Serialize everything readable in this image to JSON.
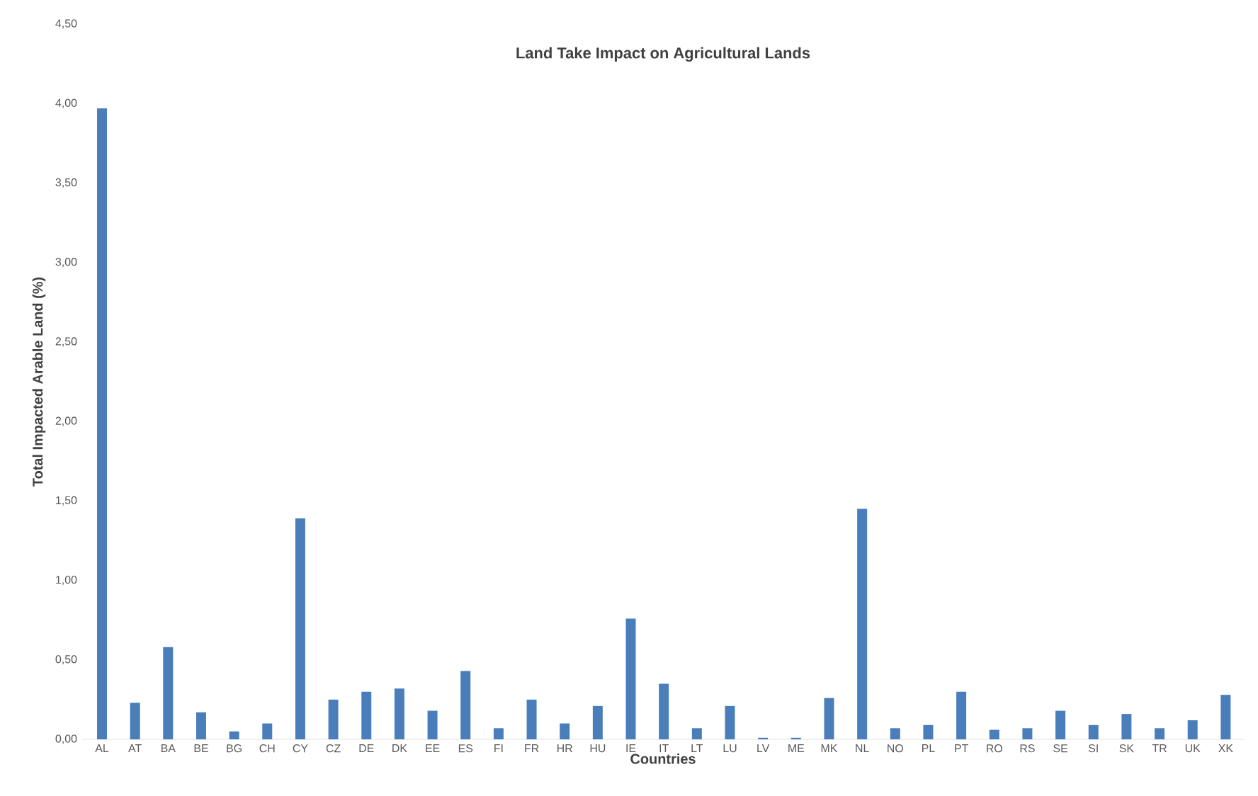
{
  "chart_data": {
    "type": "bar",
    "title": "Land Take Impact on Agricultural Lands",
    "xlabel": "Countries",
    "ylabel": "Total Impacted Arable Land (%)",
    "categories": [
      "AL",
      "AT",
      "BA",
      "BE",
      "BG",
      "CH",
      "CY",
      "CZ",
      "DE",
      "DK",
      "EE",
      "ES",
      "FI",
      "FR",
      "HR",
      "HU",
      "IE",
      "IT",
      "LT",
      "LU",
      "LV",
      "ME",
      "MK",
      "NL",
      "NO",
      "PL",
      "PT",
      "RO",
      "RS",
      "SE",
      "SI",
      "SK",
      "TR",
      "UK",
      "XK"
    ],
    "values": [
      3.97,
      0.23,
      0.58,
      0.17,
      0.05,
      0.1,
      1.39,
      0.25,
      0.3,
      0.32,
      0.18,
      0.43,
      0.07,
      0.25,
      0.1,
      0.21,
      0.76,
      0.35,
      0.07,
      0.21,
      0.01,
      0.01,
      0.26,
      1.45,
      0.07,
      0.09,
      0.3,
      0.06,
      0.07,
      0.18,
      0.09,
      0.16,
      0.07,
      0.12,
      0.28
    ],
    "color": "#4a7ebb",
    "ylim": [
      0,
      4.5
    ],
    "yticks": [
      {
        "value": 0,
        "label": "0,00"
      },
      {
        "value": 0.5,
        "label": "0,50"
      },
      {
        "value": 1,
        "label": "1,00"
      },
      {
        "value": 1.5,
        "label": "1,50"
      },
      {
        "value": 2,
        "label": "2,00"
      },
      {
        "value": 2.5,
        "label": "2,50"
      },
      {
        "value": 3,
        "label": "3,00"
      },
      {
        "value": 3.5,
        "label": "3,50"
      },
      {
        "value": 4,
        "label": "4,00"
      },
      {
        "value": 4.5,
        "label": "4,50"
      }
    ],
    "grid": false
  }
}
